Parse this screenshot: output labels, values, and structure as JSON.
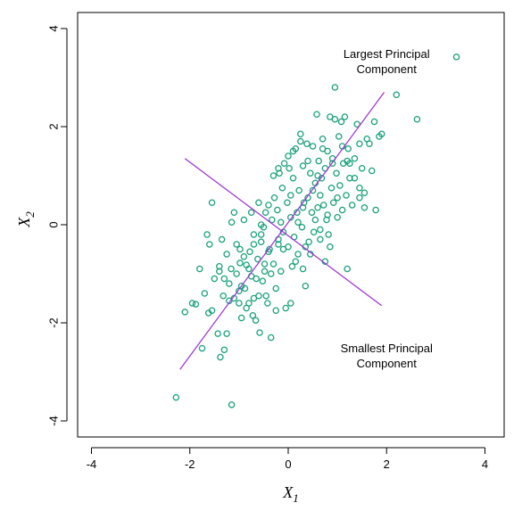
{
  "chart_data": {
    "type": "scatter",
    "title": "",
    "xlabel": {
      "main": "X",
      "sub": "1"
    },
    "ylabel": {
      "main": "X",
      "sub": "2"
    },
    "xlim": [
      -4.4,
      4.4
    ],
    "ylim": [
      -4.3,
      4.3
    ],
    "xticks": [
      -4,
      -2,
      0,
      2,
      4
    ],
    "yticks": [
      -4,
      -2,
      0,
      2,
      4
    ],
    "grid": false,
    "colors": {
      "points": "#17a07a",
      "lines": "#9a2dd6"
    },
    "annotations": [
      {
        "lines": [
          "Largest Principal",
          "Component"
        ],
        "x": 2.0,
        "y": 3.4
      },
      {
        "lines": [
          "Smallest Principal",
          "Component"
        ],
        "x": 2.0,
        "y": -2.6
      }
    ],
    "principal_components": [
      {
        "name": "Largest Principal Component",
        "from": [
          -2.2,
          -2.95
        ],
        "to": [
          1.95,
          2.7
        ]
      },
      {
        "name": "Smallest Principal Component",
        "from": [
          -2.1,
          1.35
        ],
        "to": [
          1.9,
          -1.65
        ]
      }
    ],
    "legend_marker": {
      "x": 3.42,
      "y": 3.42
    },
    "points": [
      [
        -2.28,
        -3.52
      ],
      [
        -1.15,
        -3.67
      ],
      [
        -2.1,
        -1.78
      ],
      [
        -1.88,
        -1.62
      ],
      [
        -1.75,
        -2.52
      ],
      [
        -1.7,
        -1.4
      ],
      [
        -1.62,
        -1.8
      ],
      [
        -1.55,
        -1.75
      ],
      [
        -1.5,
        -1.1
      ],
      [
        -1.43,
        -2.22
      ],
      [
        -1.4,
        -0.85
      ],
      [
        -1.38,
        -2.7
      ],
      [
        -1.32,
        -1.45
      ],
      [
        -1.3,
        -2.55
      ],
      [
        -1.25,
        -2.22
      ],
      [
        -1.2,
        -1.2
      ],
      [
        -1.16,
        -0.9
      ],
      [
        -1.1,
        -1.5
      ],
      [
        -1.05,
        -1.0
      ],
      [
        -1.0,
        -1.6
      ],
      [
        -0.98,
        -0.78
      ],
      [
        -0.95,
        -1.25
      ],
      [
        -0.9,
        -0.65
      ],
      [
        -0.88,
        -1.3
      ],
      [
        -0.85,
        -0.82
      ],
      [
        -0.8,
        -1.6
      ],
      [
        -0.78,
        -0.55
      ],
      [
        -0.75,
        -1.05
      ],
      [
        -0.72,
        -1.85
      ],
      [
        -0.7,
        -0.4
      ],
      [
        -0.66,
        -1.95
      ],
      [
        -0.62,
        -0.7
      ],
      [
        -0.6,
        -1.45
      ],
      [
        -0.58,
        -2.2
      ],
      [
        -0.55,
        -0.2
      ],
      [
        -0.52,
        -1.15
      ],
      [
        -0.5,
        -0.05
      ],
      [
        -0.48,
        -0.95
      ],
      [
        -0.46,
        0.25
      ],
      [
        -0.42,
        -1.6
      ],
      [
        -0.4,
        0.4
      ],
      [
        -0.38,
        -0.5
      ],
      [
        -0.35,
        -2.3
      ],
      [
        -0.33,
        0.1
      ],
      [
        -0.3,
        -0.8
      ],
      [
        -0.28,
        0.55
      ],
      [
        -0.25,
        -1.3
      ],
      [
        -0.22,
        0.3
      ],
      [
        -0.2,
        -0.3
      ],
      [
        -0.18,
        1.05
      ],
      [
        -0.15,
        -0.95
      ],
      [
        -0.12,
        0.75
      ],
      [
        -0.1,
        -0.15
      ],
      [
        -0.08,
        1.25
      ],
      [
        -0.05,
        -1.7
      ],
      [
        -0.02,
        0.45
      ],
      [
        0.0,
        -0.45
      ],
      [
        0.02,
        1.15
      ],
      [
        0.05,
        0.15
      ],
      [
        0.08,
        -0.85
      ],
      [
        0.1,
        0.95
      ],
      [
        0.12,
        -0.25
      ],
      [
        0.15,
        1.55
      ],
      [
        0.18,
        0.25
      ],
      [
        0.2,
        -0.6
      ],
      [
        0.22,
        0.7
      ],
      [
        0.25,
        1.85
      ],
      [
        0.28,
        -0.05
      ],
      [
        0.3,
        1.2
      ],
      [
        0.32,
        0.45
      ],
      [
        0.35,
        -1.25
      ],
      [
        0.38,
        1.65
      ],
      [
        0.4,
        0.55
      ],
      [
        0.42,
        -0.35
      ],
      [
        0.45,
        1.05
      ],
      [
        0.48,
        0.25
      ],
      [
        0.5,
        1.6
      ],
      [
        0.52,
        -0.15
      ],
      [
        0.55,
        0.85
      ],
      [
        0.58,
        2.25
      ],
      [
        0.6,
        0.35
      ],
      [
        0.62,
        1.3
      ],
      [
        0.65,
        -0.1
      ],
      [
        0.68,
        0.95
      ],
      [
        0.7,
        1.75
      ],
      [
        0.72,
        0.4
      ],
      [
        0.75,
        1.15
      ],
      [
        0.78,
        0.1
      ],
      [
        0.8,
        1.5
      ],
      [
        0.82,
        -0.2
      ],
      [
        0.85,
        2.2
      ],
      [
        0.88,
        0.75
      ],
      [
        0.9,
        1.25
      ],
      [
        0.92,
        0.45
      ],
      [
        0.95,
        2.8
      ],
      [
        0.98,
        1.05
      ],
      [
        1.0,
        0.15
      ],
      [
        1.03,
        1.8
      ],
      [
        1.05,
        0.8
      ],
      [
        1.08,
        2.1
      ],
      [
        1.1,
        0.3
      ],
      [
        1.12,
        1.25
      ],
      [
        1.15,
        2.2
      ],
      [
        1.18,
        0.6
      ],
      [
        1.2,
        -0.9
      ],
      [
        1.22,
        1.55
      ],
      [
        1.25,
        0.95
      ],
      [
        1.3,
        0.4
      ],
      [
        1.35,
        1.35
      ],
      [
        1.4,
        2.05
      ],
      [
        1.45,
        0.75
      ],
      [
        1.5,
        1.15
      ],
      [
        1.55,
        0.65
      ],
      [
        1.6,
        1.75
      ],
      [
        1.65,
        1.65
      ],
      [
        1.7,
        1.1
      ],
      [
        1.75,
        2.1
      ],
      [
        1.78,
        0.3
      ],
      [
        1.85,
        1.8
      ],
      [
        1.9,
        1.85
      ],
      [
        2.2,
        2.65
      ],
      [
        2.62,
        2.15
      ],
      [
        -0.9,
        0.1
      ],
      [
        -1.1,
        0.25
      ],
      [
        -0.7,
        -0.2
      ],
      [
        -0.55,
        -0.35
      ],
      [
        -1.35,
        -0.3
      ],
      [
        -1.6,
        -0.4
      ],
      [
        -1.8,
        -0.9
      ],
      [
        -1.95,
        -1.6
      ],
      [
        -1.2,
        -1.55
      ],
      [
        -0.95,
        -1.9
      ],
      [
        -0.45,
        -1.45
      ],
      [
        -0.25,
        -1.75
      ],
      [
        0.05,
        -1.6
      ],
      [
        0.15,
        -0.75
      ],
      [
        0.3,
        -0.9
      ],
      [
        -0.6,
        0.45
      ],
      [
        -0.4,
        -0.55
      ],
      [
        0.45,
        -0.6
      ],
      [
        0.65,
        -0.3
      ],
      [
        0.75,
        -0.75
      ],
      [
        0.85,
        -0.45
      ],
      [
        1.0,
        0.55
      ],
      [
        -0.15,
        0.05
      ],
      [
        0.2,
        0.05
      ],
      [
        -1.05,
        -0.4
      ],
      [
        -1.4,
        -0.95
      ],
      [
        -0.65,
        -1.1
      ],
      [
        -0.75,
        0.25
      ],
      [
        -1.25,
        -0.6
      ],
      [
        -0.85,
        -1.7
      ],
      [
        -0.55,
        0.0
      ],
      [
        0.35,
        -0.45
      ],
      [
        0.5,
        0.7
      ],
      [
        0.6,
        1.0
      ],
      [
        -0.3,
        1.0
      ],
      [
        -0.2,
        1.15
      ],
      [
        0.1,
        1.5
      ],
      [
        0.25,
        1.7
      ],
      [
        0.4,
        1.3
      ],
      [
        0.7,
        1.55
      ],
      [
        0.9,
        1.35
      ],
      [
        1.1,
        1.6
      ],
      [
        1.25,
        1.25
      ],
      [
        1.35,
        0.95
      ],
      [
        1.45,
        1.65
      ],
      [
        1.55,
        0.35
      ],
      [
        -1.55,
        0.45
      ],
      [
        -1.3,
        -1.1
      ],
      [
        -0.98,
        -0.5
      ],
      [
        -0.8,
        -0.9
      ],
      [
        -0.48,
        -0.8
      ],
      [
        -0.1,
        -0.5
      ],
      [
        0.05,
        0.6
      ],
      [
        0.55,
        0.1
      ],
      [
        0.8,
        0.2
      ],
      [
        -1.65,
        -0.2
      ],
      [
        -1.15,
        0.05
      ],
      [
        -0.35,
        -1.0
      ],
      [
        0.0,
        1.4
      ],
      [
        0.95,
        2.15
      ],
      [
        1.2,
        1.3
      ],
      [
        1.45,
        0.55
      ],
      [
        -0.7,
        -1.5
      ],
      [
        -0.2,
        -0.4
      ],
      [
        0.3,
        0.35
      ],
      [
        0.65,
        0.6
      ],
      [
        -1.0,
        -1.35
      ]
    ]
  }
}
